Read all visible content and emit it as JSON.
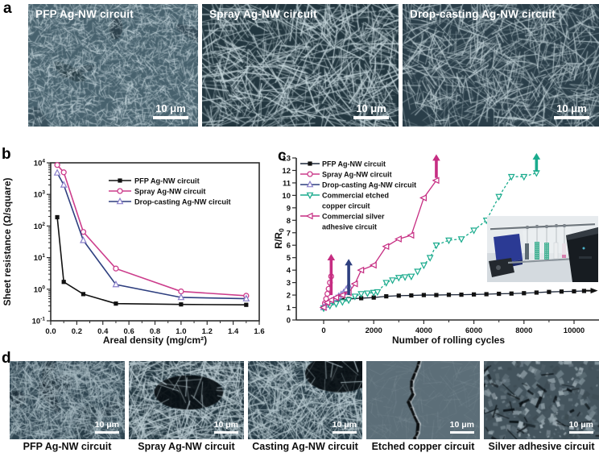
{
  "panels": {
    "a": "a",
    "b": "b",
    "c": "c",
    "d": "d"
  },
  "panel_a": {
    "images": [
      {
        "label": "PFP Ag-NW circuit",
        "scale_bar": "10 μm"
      },
      {
        "label": "Spray Ag-NW circuit",
        "scale_bar": "10 μm"
      },
      {
        "label": "Drop-casting Ag-NW circuit",
        "scale_bar": "10 μm"
      }
    ]
  },
  "panel_d": {
    "images": [
      {
        "label": "PFP Ag-NW circuit",
        "scale_bar": "10 μm"
      },
      {
        "label": "Spray Ag-NW circuit",
        "scale_bar": "10 μm"
      },
      {
        "label": "Casting Ag-NW circuit",
        "scale_bar": "10 μm"
      },
      {
        "label": "Etched copper circuit",
        "scale_bar": "10 μm"
      },
      {
        "label": "Silver adhesive circuit",
        "scale_bar": "10 μm"
      }
    ]
  },
  "chart_data": [
    {
      "type": "line",
      "panel": "b",
      "title": "",
      "xlabel": "Areal density (mg/cm²)",
      "ylabel": "Sheet resistance (Ω/square)",
      "xlim": [
        0,
        1.6
      ],
      "x_ticks": [
        0.0,
        0.2,
        0.4,
        0.6,
        0.8,
        1.0,
        1.2,
        1.4,
        1.6
      ],
      "yscale": "log",
      "ylim": [
        0.1,
        10000
      ],
      "y_tick_exponents": [
        -1,
        0,
        1,
        2,
        3,
        4
      ],
      "grid": false,
      "legend_position": "top-center-inside",
      "series": [
        {
          "name": "PFP Ag-NW circuit",
          "color": "#111111",
          "marker": "square-filled",
          "x": [
            0.05,
            0.1,
            0.25,
            0.5,
            1.0,
            1.5
          ],
          "y": [
            190,
            1.7,
            0.7,
            0.35,
            0.33,
            0.32
          ]
        },
        {
          "name": "Spray Ag-NW circuit",
          "color": "#cc3d8c",
          "marker": "circle-open",
          "x": [
            0.05,
            0.1,
            0.25,
            0.5,
            1.0,
            1.5
          ],
          "y": [
            8500,
            5000,
            65,
            4.5,
            0.85,
            0.62
          ]
        },
        {
          "name": "Drop-casting Ag-NW circuit",
          "color": "#2e3f7f",
          "marker": "triangle-open",
          "marker_color": "#8a7fca",
          "x": [
            0.05,
            0.1,
            0.25,
            0.5,
            1.0,
            1.5
          ],
          "y": [
            4800,
            2000,
            35,
            1.4,
            0.55,
            0.5
          ]
        }
      ]
    },
    {
      "type": "line",
      "panel": "c",
      "title": "",
      "xlabel": "Number of rolling cycles",
      "ylabel": "R/R₀",
      "xlim": [
        -1100,
        11000
      ],
      "x_ticks": [
        0,
        2000,
        4000,
        6000,
        8000,
        10000
      ],
      "ylim": [
        0,
        13
      ],
      "y_ticks": [
        0,
        1,
        2,
        3,
        4,
        5,
        6,
        7,
        8,
        9,
        10,
        11,
        12,
        13
      ],
      "grid": false,
      "legend_position": "top-left-inside",
      "series": [
        {
          "name": "PFP Ag-NW circuit",
          "legend": "PFP Ag-NW circuit",
          "color": "#1c2638",
          "marker": "square-filled",
          "marker_color": "#111111",
          "x": [
            0,
            250,
            500,
            750,
            1000,
            1500,
            2000,
            2500,
            3000,
            3500,
            4000,
            4500,
            5000,
            5500,
            6000,
            6500,
            7000,
            7500,
            8000,
            8500,
            9000,
            9500,
            10000,
            10400
          ],
          "y": [
            1.0,
            1.35,
            1.5,
            1.6,
            1.68,
            1.75,
            1.8,
            1.9,
            1.95,
            1.97,
            2.0,
            2.0,
            2.02,
            2.03,
            2.05,
            2.07,
            2.1,
            2.12,
            2.15,
            2.2,
            2.25,
            2.28,
            2.3,
            2.33
          ]
        },
        {
          "name": "Spray Ag-NW circuit",
          "legend": "Spray Ag-NW circuit",
          "color": "#cc3d8c",
          "marker": "circle-open",
          "x": [
            0,
            50,
            100,
            150,
            200,
            250,
            300
          ],
          "y": [
            1.0,
            1.35,
            1.7,
            2.1,
            2.5,
            3.0,
            3.5
          ]
        },
        {
          "name": "Drop-casting Ag-NW circuit",
          "legend": "Drop-casting Ag-NW circuit",
          "color": "#2e3f7f",
          "marker": "triangle-open",
          "marker_color": "#8a7fca",
          "x": [
            0,
            100,
            200,
            300,
            400,
            500,
            600,
            700,
            800,
            900,
            1000
          ],
          "y": [
            1.0,
            1.2,
            1.35,
            1.5,
            1.62,
            1.75,
            1.9,
            2.05,
            2.2,
            2.45,
            2.75
          ]
        },
        {
          "name": "Commercial etched copper circuit",
          "legend": "Commercial etched",
          "legend2": "copper circuit",
          "color": "#1aab8d",
          "marker": "triangle-down-open",
          "dash": "3,2.5",
          "x": [
            0,
            250,
            500,
            750,
            1000,
            1250,
            1500,
            1750,
            2000,
            2150,
            2500,
            2750,
            3000,
            3250,
            3500,
            3750,
            4000,
            4250,
            4500,
            5000,
            5500,
            6000,
            6500,
            7000,
            7500,
            8000,
            8500
          ],
          "y": [
            0.95,
            1.15,
            1.3,
            1.45,
            1.6,
            1.9,
            2.1,
            2.15,
            2.2,
            2.25,
            3.0,
            3.2,
            3.4,
            3.45,
            3.5,
            3.9,
            4.4,
            5.0,
            6.0,
            6.4,
            6.5,
            7.2,
            8.0,
            9.9,
            11.5,
            11.5,
            11.8
          ]
        },
        {
          "name": "Commercial silver adhesive circuit",
          "legend": "Commercial silver",
          "legend2": "adhesive circuit",
          "color": "#c62d82",
          "marker": "triangle-left-open",
          "x": [
            0,
            150,
            300,
            500,
            750,
            1000,
            1250,
            1500,
            2000,
            2500,
            3000,
            3500,
            4000,
            4500
          ],
          "y": [
            1.0,
            1.4,
            1.6,
            1.8,
            2.0,
            2.2,
            2.9,
            4.0,
            4.4,
            5.9,
            6.5,
            6.8,
            9.8,
            11.2
          ]
        }
      ],
      "annotations": [
        {
          "type": "arrow-up",
          "x": 300,
          "y_from": 2.0,
          "y_to": 5.3,
          "color": "#c62d82"
        },
        {
          "type": "arrow-up",
          "x": 1000,
          "y_from": 2.0,
          "y_to": 4.9,
          "color": "#2e3f7f"
        },
        {
          "type": "arrow-up",
          "x": 4500,
          "y_from": 11.4,
          "y_to": 13.3,
          "color": "#c62d82"
        },
        {
          "type": "arrow-up",
          "x": 8500,
          "y_from": 11.9,
          "y_to": 13.4,
          "color": "#1aab8d"
        },
        {
          "type": "arrow-right",
          "x_from": 10350,
          "x_to": 10950,
          "y": 2.35,
          "color": "#111111"
        }
      ]
    }
  ]
}
